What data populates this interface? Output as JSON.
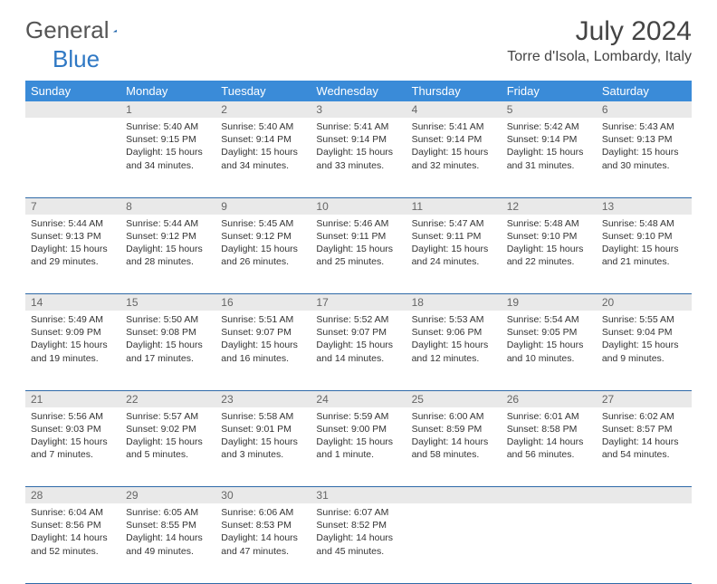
{
  "brand": {
    "text1": "General",
    "text2": "Blue"
  },
  "title": "July 2024",
  "location": "Torre d'Isola, Lombardy, Italy",
  "colors": {
    "header_bg": "#3a8bd8",
    "header_text": "#ffffff",
    "daynum_bg": "#e9e9e9",
    "daynum_text": "#666666",
    "body_text": "#333333",
    "rule": "#2f6aa8",
    "logo_gray": "#555555",
    "logo_blue": "#2f78c4"
  },
  "weekdays": [
    "Sunday",
    "Monday",
    "Tuesday",
    "Wednesday",
    "Thursday",
    "Friday",
    "Saturday"
  ],
  "weeks": [
    [
      null,
      {
        "n": "1",
        "sr": "5:40 AM",
        "ss": "9:15 PM",
        "dl": "15 hours and 34 minutes."
      },
      {
        "n": "2",
        "sr": "5:40 AM",
        "ss": "9:14 PM",
        "dl": "15 hours and 34 minutes."
      },
      {
        "n": "3",
        "sr": "5:41 AM",
        "ss": "9:14 PM",
        "dl": "15 hours and 33 minutes."
      },
      {
        "n": "4",
        "sr": "5:41 AM",
        "ss": "9:14 PM",
        "dl": "15 hours and 32 minutes."
      },
      {
        "n": "5",
        "sr": "5:42 AM",
        "ss": "9:14 PM",
        "dl": "15 hours and 31 minutes."
      },
      {
        "n": "6",
        "sr": "5:43 AM",
        "ss": "9:13 PM",
        "dl": "15 hours and 30 minutes."
      }
    ],
    [
      {
        "n": "7",
        "sr": "5:44 AM",
        "ss": "9:13 PM",
        "dl": "15 hours and 29 minutes."
      },
      {
        "n": "8",
        "sr": "5:44 AM",
        "ss": "9:12 PM",
        "dl": "15 hours and 28 minutes."
      },
      {
        "n": "9",
        "sr": "5:45 AM",
        "ss": "9:12 PM",
        "dl": "15 hours and 26 minutes."
      },
      {
        "n": "10",
        "sr": "5:46 AM",
        "ss": "9:11 PM",
        "dl": "15 hours and 25 minutes."
      },
      {
        "n": "11",
        "sr": "5:47 AM",
        "ss": "9:11 PM",
        "dl": "15 hours and 24 minutes."
      },
      {
        "n": "12",
        "sr": "5:48 AM",
        "ss": "9:10 PM",
        "dl": "15 hours and 22 minutes."
      },
      {
        "n": "13",
        "sr": "5:48 AM",
        "ss": "9:10 PM",
        "dl": "15 hours and 21 minutes."
      }
    ],
    [
      {
        "n": "14",
        "sr": "5:49 AM",
        "ss": "9:09 PM",
        "dl": "15 hours and 19 minutes."
      },
      {
        "n": "15",
        "sr": "5:50 AM",
        "ss": "9:08 PM",
        "dl": "15 hours and 17 minutes."
      },
      {
        "n": "16",
        "sr": "5:51 AM",
        "ss": "9:07 PM",
        "dl": "15 hours and 16 minutes."
      },
      {
        "n": "17",
        "sr": "5:52 AM",
        "ss": "9:07 PM",
        "dl": "15 hours and 14 minutes."
      },
      {
        "n": "18",
        "sr": "5:53 AM",
        "ss": "9:06 PM",
        "dl": "15 hours and 12 minutes."
      },
      {
        "n": "19",
        "sr": "5:54 AM",
        "ss": "9:05 PM",
        "dl": "15 hours and 10 minutes."
      },
      {
        "n": "20",
        "sr": "5:55 AM",
        "ss": "9:04 PM",
        "dl": "15 hours and 9 minutes."
      }
    ],
    [
      {
        "n": "21",
        "sr": "5:56 AM",
        "ss": "9:03 PM",
        "dl": "15 hours and 7 minutes."
      },
      {
        "n": "22",
        "sr": "5:57 AM",
        "ss": "9:02 PM",
        "dl": "15 hours and 5 minutes."
      },
      {
        "n": "23",
        "sr": "5:58 AM",
        "ss": "9:01 PM",
        "dl": "15 hours and 3 minutes."
      },
      {
        "n": "24",
        "sr": "5:59 AM",
        "ss": "9:00 PM",
        "dl": "15 hours and 1 minute."
      },
      {
        "n": "25",
        "sr": "6:00 AM",
        "ss": "8:59 PM",
        "dl": "14 hours and 58 minutes."
      },
      {
        "n": "26",
        "sr": "6:01 AM",
        "ss": "8:58 PM",
        "dl": "14 hours and 56 minutes."
      },
      {
        "n": "27",
        "sr": "6:02 AM",
        "ss": "8:57 PM",
        "dl": "14 hours and 54 minutes."
      }
    ],
    [
      {
        "n": "28",
        "sr": "6:04 AM",
        "ss": "8:56 PM",
        "dl": "14 hours and 52 minutes."
      },
      {
        "n": "29",
        "sr": "6:05 AM",
        "ss": "8:55 PM",
        "dl": "14 hours and 49 minutes."
      },
      {
        "n": "30",
        "sr": "6:06 AM",
        "ss": "8:53 PM",
        "dl": "14 hours and 47 minutes."
      },
      {
        "n": "31",
        "sr": "6:07 AM",
        "ss": "8:52 PM",
        "dl": "14 hours and 45 minutes."
      },
      null,
      null,
      null
    ]
  ],
  "labels": {
    "sunrise": "Sunrise:",
    "sunset": "Sunset:",
    "daylight": "Daylight:"
  }
}
